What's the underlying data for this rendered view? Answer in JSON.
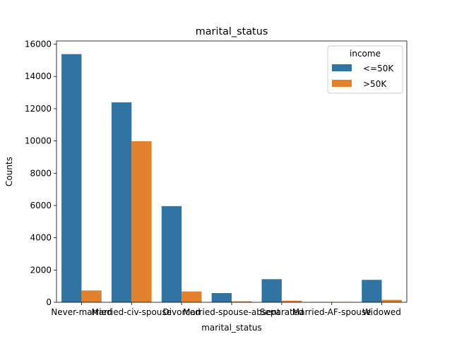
{
  "chart_data": {
    "type": "bar",
    "title": "marital_status",
    "xlabel": "marital_status",
    "ylabel": "Counts",
    "categories": [
      "Never-married",
      "Married-civ-spouse",
      "Divorced",
      "Married-spouse-absent",
      "Separated",
      "Married-AF-spouse",
      "Widowed"
    ],
    "series": [
      {
        "name": "<=50K",
        "color": "#3274a1",
        "values": [
          15384,
          12395,
          5962,
          571,
          1431,
          14,
          1390
        ]
      },
      {
        "name": ">50K",
        "color": "#e1812c",
        "values": [
          733,
          9984,
          671,
          58,
          99,
          23,
          148
        ]
      }
    ],
    "ylim": [
      0,
      16200
    ],
    "yticks": [
      0,
      2000,
      4000,
      6000,
      8000,
      10000,
      12000,
      14000,
      16000
    ],
    "legend": {
      "title": "income",
      "placement": "top-right"
    },
    "grid": false
  }
}
